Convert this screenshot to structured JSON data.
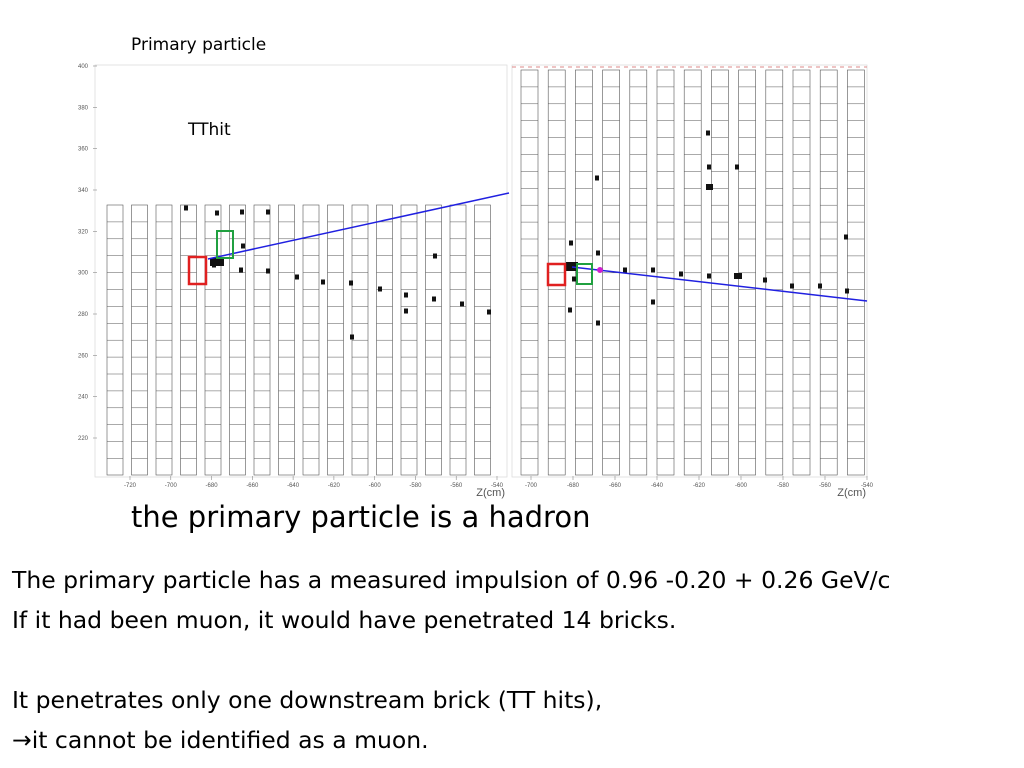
{
  "labels": {
    "primary_particle": "Primary particle",
    "tthit": "TThit"
  },
  "left_panel": {
    "y_ticks": [
      "400",
      "380",
      "360",
      "340",
      "320",
      "300",
      "280",
      "260",
      "240",
      "220"
    ],
    "x_ticks": [
      "-720",
      "-700",
      "-680",
      "-660",
      "-640",
      "-620",
      "-600",
      "-580",
      "-560",
      "-540"
    ],
    "x_axis_label": "Z(cm)"
  },
  "right_panel": {
    "x_ticks": [
      "-700",
      "-680",
      "-660",
      "-640",
      "-620",
      "-600",
      "-580",
      "-560",
      "-540"
    ],
    "x_axis_label": "Z(cm)"
  },
  "heading": "the primary particle is a hadron",
  "body_lines": [
    "The primary particle has a measured impulsion of 0.96 -0.20 + 0.26 GeV/c",
    "If it had been muon, it would have penetrated 14 bricks.",
    "",
    "It penetrates only one downstream brick (TT hits),",
    "it cannot be identified as a muon."
  ],
  "colors": {
    "track": "#2020e0",
    "primary_box": "#e02020",
    "tt_box": "#20a040",
    "grid": "#555555"
  }
}
